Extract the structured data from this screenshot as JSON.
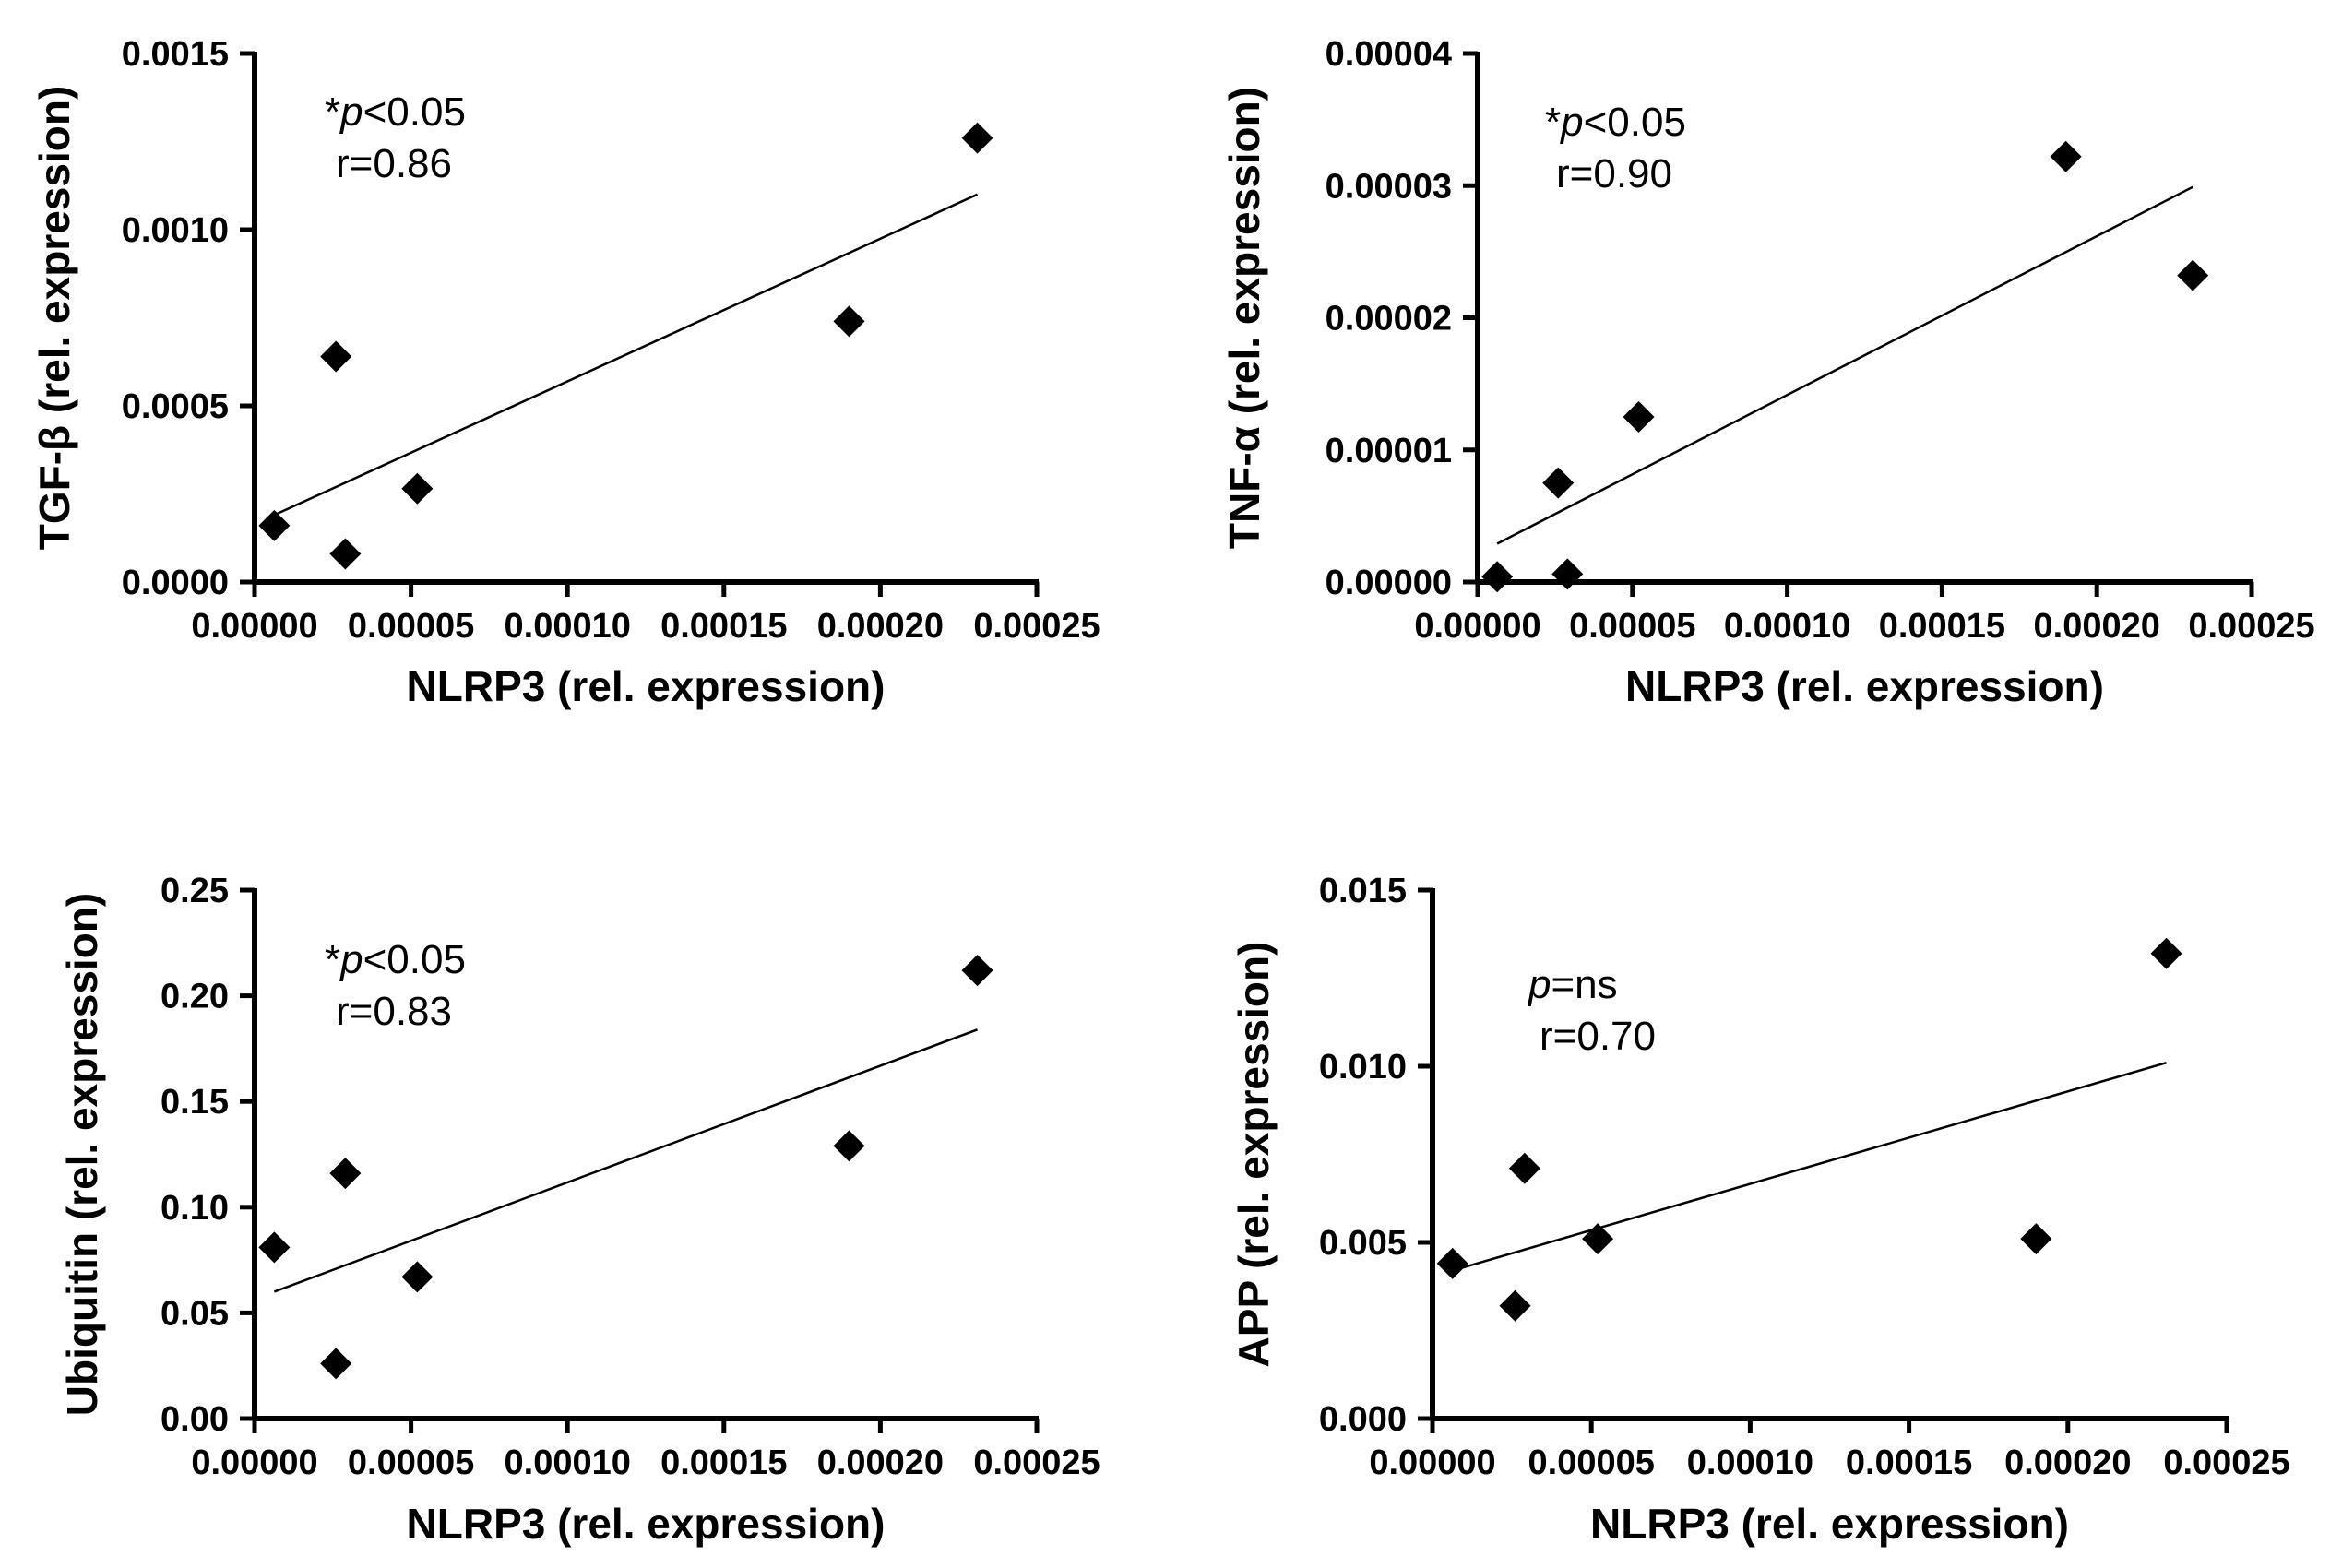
{
  "figure_colors": {
    "ink": "#000000",
    "background": "#ffffff"
  },
  "chart_data": [
    {
      "type": "scatter",
      "id": "tgfb",
      "xlabel": "NLRP3 (rel. expression)",
      "ylabel": "TGF-β (rel. expression)",
      "xlim": [
        0,
        0.00025
      ],
      "ylim": [
        0,
        0.0015
      ],
      "xticks": [
        0,
        5e-05,
        0.0001,
        0.00015,
        0.0002,
        0.00025
      ],
      "xtick_labels": [
        "0.00000",
        "0.00005",
        "0.00010",
        "0.00015",
        "0.00020",
        "0.00025"
      ],
      "yticks": [
        0,
        0.0005,
        0.001,
        0.0015
      ],
      "ytick_labels": [
        "0.0000",
        "0.0005",
        "0.0010",
        "0.0015"
      ],
      "points": [
        {
          "x": 6.3e-06,
          "y": 0.00016
        },
        {
          "x": 2.6e-05,
          "y": 0.00064
        },
        {
          "x": 2.9e-05,
          "y": 8e-05
        },
        {
          "x": 5.2e-05,
          "y": 0.000265
        },
        {
          "x": 0.00019,
          "y": 0.00074
        },
        {
          "x": 0.000231,
          "y": 0.00126
        }
      ],
      "fit_line": {
        "x": [
          6.3e-06,
          0.000231
        ],
        "y": [
          0.00019,
          0.0011
        ]
      },
      "annotation": {
        "star": "*",
        "p_symbol": "p",
        "p_value": "<0.05",
        "r_text": "r=0.86"
      }
    },
    {
      "type": "scatter",
      "id": "tnfa",
      "xlabel": "NLRP3 (rel. expression)",
      "ylabel": "TNF-α (rel. expression)",
      "xlim": [
        0,
        0.00025
      ],
      "ylim": [
        0,
        4e-05
      ],
      "xticks": [
        0,
        5e-05,
        0.0001,
        0.00015,
        0.0002,
        0.00025
      ],
      "xtick_labels": [
        "0.00000",
        "0.00005",
        "0.00010",
        "0.00015",
        "0.00020",
        "0.00025"
      ],
      "yticks": [
        0,
        1e-05,
        2e-05,
        3e-05,
        4e-05
      ],
      "ytick_labels": [
        "0.00000",
        "0.00001",
        "0.00002",
        "0.00003",
        "0.00004"
      ],
      "points": [
        {
          "x": 6.3e-06,
          "y": 4e-07
        },
        {
          "x": 2.6e-05,
          "y": 7.5e-06
        },
        {
          "x": 2.9e-05,
          "y": 6e-07
        },
        {
          "x": 5.2e-05,
          "y": 1.25e-05
        },
        {
          "x": 0.00019,
          "y": 3.22e-05
        },
        {
          "x": 0.000231,
          "y": 2.32e-05
        }
      ],
      "fit_line": {
        "x": [
          6.3e-06,
          0.000231
        ],
        "y": [
          2.9e-06,
          2.99e-05
        ]
      },
      "annotation": {
        "star": "*",
        "p_symbol": "p",
        "p_value": "<0.05",
        "r_text": "r=0.90"
      }
    },
    {
      "type": "scatter",
      "id": "ubiquitin",
      "xlabel": "NLRP3 (rel. expression)",
      "ylabel": "Ubiquitin (rel. expression)",
      "xlim": [
        0,
        0.00025
      ],
      "ylim": [
        0,
        0.25
      ],
      "xticks": [
        0,
        5e-05,
        0.0001,
        0.00015,
        0.0002,
        0.00025
      ],
      "xtick_labels": [
        "0.00000",
        "0.00005",
        "0.00010",
        "0.00015",
        "0.00020",
        "0.00025"
      ],
      "yticks": [
        0,
        0.05,
        0.1,
        0.15,
        0.2,
        0.25
      ],
      "ytick_labels": [
        "0.00",
        "0.05",
        "0.10",
        "0.15",
        "0.20",
        "0.25"
      ],
      "points": [
        {
          "x": 6.3e-06,
          "y": 0.081
        },
        {
          "x": 2.6e-05,
          "y": 0.026
        },
        {
          "x": 2.9e-05,
          "y": 0.116
        },
        {
          "x": 5.2e-05,
          "y": 0.067
        },
        {
          "x": 0.00019,
          "y": 0.129
        },
        {
          "x": 0.000231,
          "y": 0.212
        }
      ],
      "fit_line": {
        "x": [
          6.3e-06,
          0.000231
        ],
        "y": [
          0.06,
          0.184
        ]
      },
      "annotation": {
        "star": "*",
        "p_symbol": "p",
        "p_value": "<0.05",
        "r_text": "r=0.83"
      }
    },
    {
      "type": "scatter",
      "id": "app",
      "xlabel": "NLRP3 (rel. expression)",
      "ylabel": "APP (rel. expression)",
      "xlim": [
        0,
        0.00025
      ],
      "ylim": [
        0,
        0.015
      ],
      "xticks": [
        0,
        5e-05,
        0.0001,
        0.00015,
        0.0002,
        0.00025
      ],
      "xtick_labels": [
        "0.00000",
        "0.00005",
        "0.00010",
        "0.00015",
        "0.00020",
        "0.00025"
      ],
      "yticks": [
        0,
        0.005,
        0.01,
        0.015
      ],
      "ytick_labels": [
        "0.000",
        "0.005",
        "0.010",
        "0.015"
      ],
      "points": [
        {
          "x": 6.3e-06,
          "y": 0.0044
        },
        {
          "x": 2.6e-05,
          "y": 0.0032
        },
        {
          "x": 2.9e-05,
          "y": 0.0071
        },
        {
          "x": 5.2e-05,
          "y": 0.0051
        },
        {
          "x": 0.00019,
          "y": 0.0051
        },
        {
          "x": 0.000231,
          "y": 0.0132
        }
      ],
      "fit_line": {
        "x": [
          6.3e-06,
          0.000231
        ],
        "y": [
          0.0042,
          0.0101
        ]
      },
      "annotation": {
        "star": "",
        "p_symbol": "p",
        "p_value": "=ns",
        "r_text": "r=0.70"
      }
    }
  ]
}
